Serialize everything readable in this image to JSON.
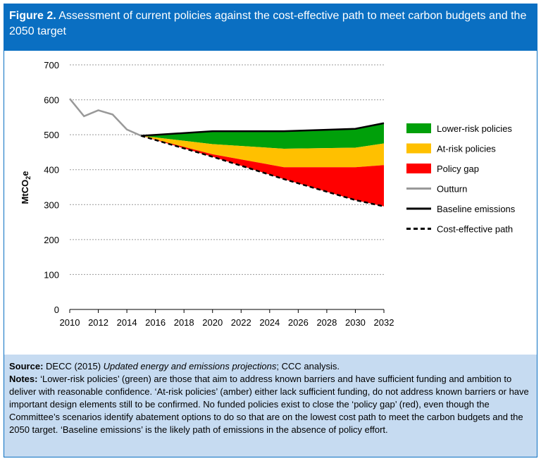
{
  "figure": {
    "label": "Figure 2.",
    "title": "Assessment of current policies against the cost-effective path to meet carbon budgets and the 2050 target"
  },
  "notes": {
    "source_label": "Source:",
    "source_text_1": "DECC (2015) ",
    "source_italic": "Updated energy and emissions projections",
    "source_text_2": "; CCC analysis.",
    "notes_label": "Notes:",
    "notes_text": "‘Lower-risk policies’ (green) are those that aim to address known barriers and have sufficient funding and ambition to deliver with reasonable confidence. ‘At-risk policies’ (amber) either lack sufficient funding, do not address known barriers or have important design elements still to be confirmed. No funded policies exist to close the ‘policy gap’ (red), even though the Committee’s scenarios identify abatement options to do so that are on the lowest cost path to meet the carbon budgets and the 2050 target. ‘Baseline emissions’ is the likely path of emissions in the absence of policy effort."
  },
  "chart_data": {
    "type": "area",
    "ylabel": "MtCO2e",
    "ylim": [
      0,
      700
    ],
    "xlim": [
      2010,
      2032
    ],
    "yticks": [
      0,
      100,
      200,
      300,
      400,
      500,
      600,
      700
    ],
    "xticks": [
      2010,
      2012,
      2014,
      2016,
      2018,
      2020,
      2022,
      2024,
      2026,
      2028,
      2030,
      2032
    ],
    "grid": true,
    "legend": "right",
    "colors": {
      "lower": "#00a00a",
      "atrisk": "#ffc000",
      "gap": "#ff0000",
      "outturn": "#999999",
      "baseline": "#000000",
      "cost": "#000000"
    },
    "series": [
      {
        "name": "Outturn",
        "x": [
          2010,
          2011,
          2012,
          2013,
          2014,
          2015
        ],
        "values": [
          603,
          553,
          570,
          558,
          515,
          497
        ]
      },
      {
        "name": "Baseline emissions",
        "x": [
          2015,
          2020,
          2025,
          2030,
          2032
        ],
        "values": [
          497,
          510,
          510,
          517,
          533
        ]
      },
      {
        "name": "Lower-risk policies",
        "x": [
          2015,
          2020,
          2025,
          2030,
          2032
        ],
        "lower": [
          497,
          473,
          460,
          463,
          475
        ],
        "upper": [
          497,
          510,
          510,
          517,
          533
        ]
      },
      {
        "name": "At-risk policies",
        "x": [
          2015,
          2020,
          2025,
          2030,
          2032
        ],
        "lower": [
          497,
          444,
          407,
          407,
          413
        ],
        "upper": [
          497,
          473,
          460,
          463,
          475
        ]
      },
      {
        "name": "Policy gap",
        "x": [
          2015,
          2020,
          2025,
          2030,
          2032
        ],
        "lower": [
          497,
          437,
          373,
          313,
          295
        ],
        "upper": [
          497,
          444,
          407,
          407,
          413
        ]
      },
      {
        "name": "Cost-effective path",
        "x": [
          2015,
          2020,
          2025,
          2030,
          2032
        ],
        "values": [
          497,
          437,
          373,
          313,
          295
        ]
      }
    ]
  }
}
